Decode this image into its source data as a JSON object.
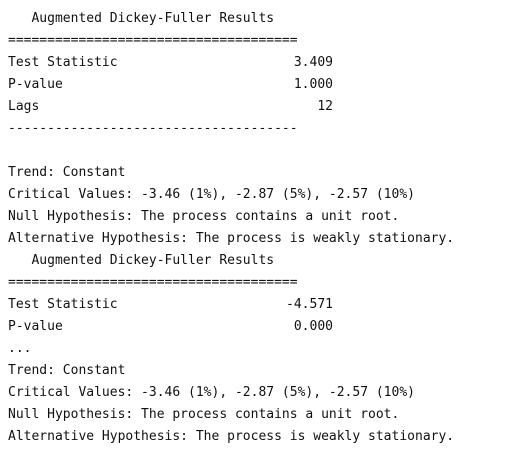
{
  "results": [
    {
      "title": "   Augmented Dickey-Fuller Results",
      "separator_top": "=====================================",
      "rows": [
        {
          "label": "Test Statistic",
          "value": "3.409"
        },
        {
          "label": "P-value",
          "value": "1.000"
        },
        {
          "label": "Lags",
          "value": "12"
        }
      ],
      "separator_bottom": "-------------------------------------",
      "trend": "Trend: Constant",
      "critical_values": "Critical Values: -3.46 (1%), -2.87 (5%), -2.57 (10%)",
      "null_hypothesis": "Null Hypothesis: The process contains a unit root.",
      "alt_hypothesis": "Alternative Hypothesis: The process is weakly stationary."
    },
    {
      "title": "   Augmented Dickey-Fuller Results",
      "separator_top": "=====================================",
      "rows": [
        {
          "label": "Test Statistic",
          "value": "-4.571"
        },
        {
          "label": "P-value",
          "value": "0.000"
        }
      ],
      "ellipsis": "...",
      "trend": "Trend: Constant",
      "critical_values": "Critical Values: -3.46 (1%), -2.87 (5%), -2.57 (10%)",
      "null_hypothesis": "Null Hypothesis: The process contains a unit root.",
      "alt_hypothesis": "Alternative Hypothesis: The process is weakly stationary."
    }
  ]
}
